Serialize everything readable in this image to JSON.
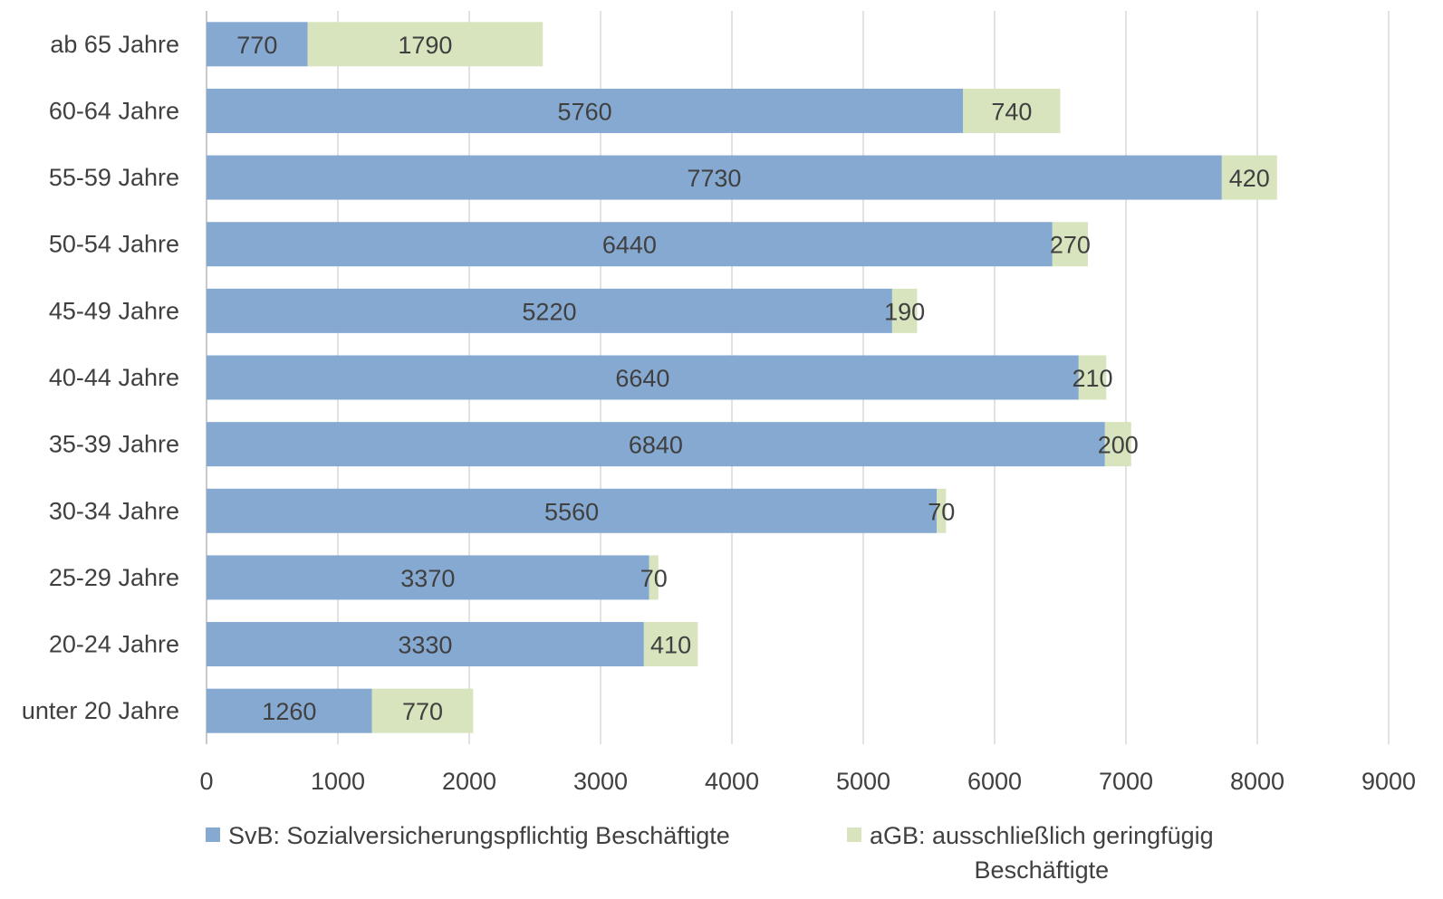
{
  "chart_data": {
    "type": "bar",
    "orientation": "horizontal",
    "stacked": true,
    "title": "",
    "xlabel": "",
    "ylabel": "",
    "categories": [
      "ab 65 Jahre",
      "60-64 Jahre",
      "55-59 Jahre",
      "50-54 Jahre",
      "45-49 Jahre",
      "40-44 Jahre",
      "35-39 Jahre",
      "30-34 Jahre",
      "25-29 Jahre",
      "20-24 Jahre",
      "unter 20 Jahre"
    ],
    "series": [
      {
        "name": "SvB: Sozialversicherungspflichtig Beschäftigte",
        "color": "#86a9d2",
        "values": [
          770,
          5760,
          7730,
          6440,
          5220,
          6640,
          6840,
          5560,
          3370,
          3330,
          1260
        ]
      },
      {
        "name": "aGB: ausschließlich geringfügig Beschäftigte",
        "color": "#d7e4bd",
        "values": [
          1790,
          740,
          420,
          270,
          190,
          210,
          200,
          70,
          70,
          410,
          770
        ]
      }
    ],
    "xlim": [
      0,
      9000
    ],
    "xticks": [
      0,
      1000,
      2000,
      3000,
      4000,
      5000,
      6000,
      7000,
      8000,
      9000
    ],
    "grid": "vertical",
    "legend_position": "bottom"
  },
  "legend": {
    "svb_label": "SvB: Sozialversicherungspflichtig Beschäftigte",
    "agb_label_line1": "aGB: ausschließlich geringfügig",
    "agb_label_line2": "Beschäftigte"
  }
}
